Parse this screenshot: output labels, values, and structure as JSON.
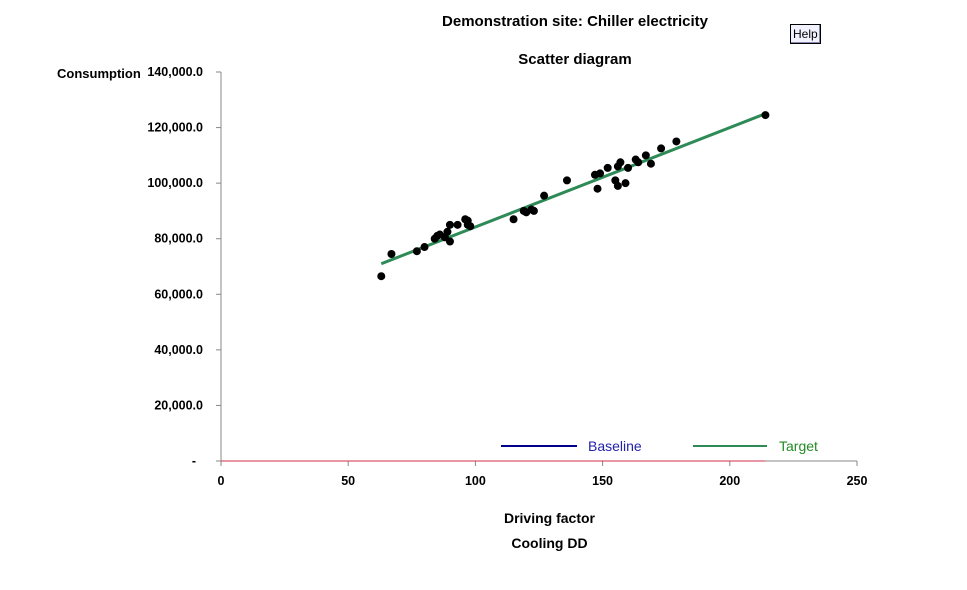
{
  "header": {
    "title": "Demonstration site: Chiller electricity",
    "subtitle": "Scatter diagram",
    "help_label": "Help"
  },
  "chart_data": {
    "type": "scatter",
    "ylabel": "Consumption",
    "xlabel": "Driving factor",
    "xlabel_sub": "Cooling DD",
    "xlim": [
      0,
      250
    ],
    "ylim": [
      0,
      140000
    ],
    "x_ticks": [
      0,
      50,
      100,
      150,
      200,
      250
    ],
    "x_tick_labels": [
      "0",
      "50",
      "100",
      "150",
      "200",
      "250"
    ],
    "y_ticks": [
      0,
      20000,
      40000,
      60000,
      80000,
      100000,
      120000,
      140000
    ],
    "y_tick_labels": [
      "-",
      "20,000.0",
      "40,000.0",
      "60,000.0",
      "80,000.0",
      "100,000.0",
      "120,000.0",
      "140,000.0"
    ],
    "grid": false,
    "legend_placement": "bottom-right",
    "points": [
      [
        63,
        66500
      ],
      [
        67,
        74500
      ],
      [
        77,
        75500
      ],
      [
        80,
        77000
      ],
      [
        84,
        80000
      ],
      [
        85,
        81000
      ],
      [
        86,
        81500
      ],
      [
        88,
        80500
      ],
      [
        89,
        82500
      ],
      [
        90,
        79000
      ],
      [
        90,
        85000
      ],
      [
        93,
        85000
      ],
      [
        96,
        87000
      ],
      [
        97,
        86500
      ],
      [
        97,
        85000
      ],
      [
        98,
        84500
      ],
      [
        115,
        87000
      ],
      [
        119,
        90000
      ],
      [
        120,
        89500
      ],
      [
        122,
        90500
      ],
      [
        123,
        90000
      ],
      [
        127,
        95500
      ],
      [
        136,
        101000
      ],
      [
        147,
        103000
      ],
      [
        148,
        98000
      ],
      [
        149,
        103500
      ],
      [
        152,
        105500
      ],
      [
        155,
        101000
      ],
      [
        156,
        106000
      ],
      [
        156,
        99000
      ],
      [
        157,
        107500
      ],
      [
        159,
        100000
      ],
      [
        160,
        105500
      ],
      [
        163,
        108500
      ],
      [
        164,
        107500
      ],
      [
        167,
        110000
      ],
      [
        169,
        107000
      ],
      [
        173,
        112500
      ],
      [
        179,
        115000
      ],
      [
        214,
        124500
      ]
    ],
    "series": [
      {
        "name": "Baseline",
        "color": "#00008b",
        "points": [
          [
            0,
            0
          ],
          [
            214,
            0
          ]
        ]
      },
      {
        "name": "Target",
        "color": "#2e8b57",
        "points": [
          [
            63,
            71000
          ],
          [
            214,
            125000
          ]
        ]
      }
    ],
    "zero_line_color": "#d2324a",
    "marker_color": "#000000"
  }
}
